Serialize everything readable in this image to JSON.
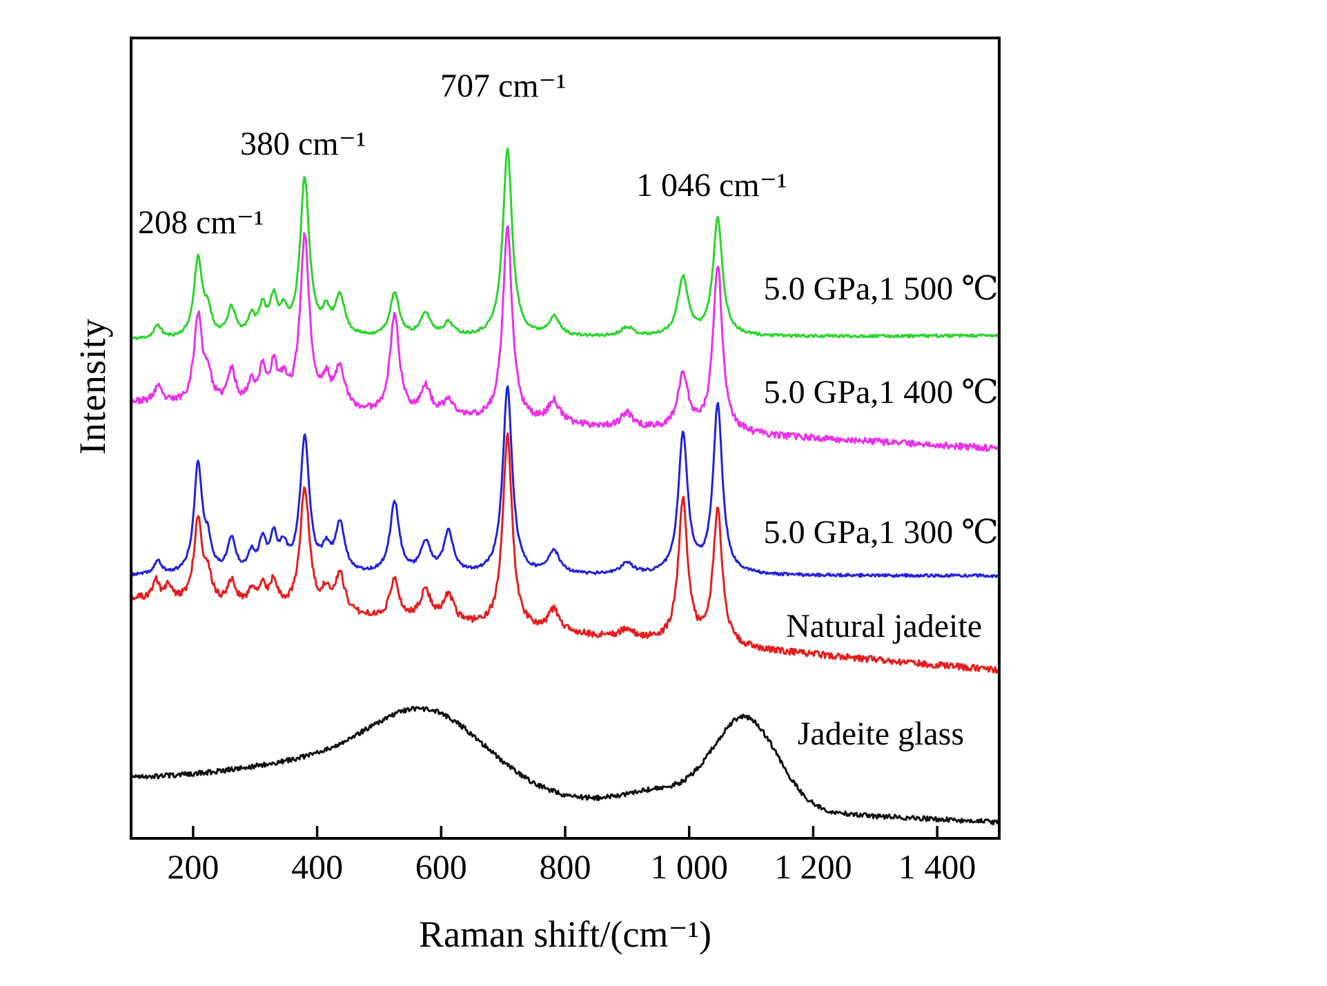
{
  "figure": {
    "background": "#ffffff"
  },
  "chart_data": {
    "type": "line",
    "title": "",
    "xlabel": "Raman shift/(cm⁻¹)",
    "ylabel": "Intensity",
    "xlim": [
      100,
      1500
    ],
    "grid": false,
    "frame": true,
    "legend_position": "right-of-each-curve",
    "xticks": [
      200,
      400,
      600,
      800,
      1000,
      1200,
      1400
    ],
    "xtick_labels": [
      "200",
      "400",
      "600",
      "800",
      "1 000",
      "1 200",
      "1 400"
    ],
    "peak_labels": [
      {
        "text": "208 cm⁻¹",
        "x": 208
      },
      {
        "text": "380 cm⁻¹",
        "x": 380
      },
      {
        "text": "707 cm⁻¹",
        "x": 707
      },
      {
        "text": "1 046 cm⁻¹",
        "x": 1046
      }
    ],
    "series": [
      {
        "name": "5.0 GPa,1 500 ℃",
        "color": "#2bd42b",
        "baseline": 0.623,
        "tilt": 0.005,
        "scale": 0.235,
        "noise": 0.0018,
        "seed": 11,
        "peaks": [
          [
            143,
            0.07,
            7
          ],
          [
            208,
            0.42,
            8
          ],
          [
            224,
            0.12,
            7
          ],
          [
            262,
            0.15,
            8
          ],
          [
            294,
            0.1,
            7
          ],
          [
            312,
            0.15,
            7
          ],
          [
            330,
            0.19,
            7
          ],
          [
            346,
            0.11,
            7
          ],
          [
            380,
            0.84,
            9
          ],
          [
            415,
            0.11,
            8
          ],
          [
            437,
            0.21,
            9
          ],
          [
            525,
            0.23,
            9
          ],
          [
            575,
            0.12,
            10
          ],
          [
            612,
            0.07,
            10
          ],
          [
            707,
            1.0,
            9
          ],
          [
            782,
            0.1,
            11
          ],
          [
            900,
            0.05,
            12
          ],
          [
            990,
            0.31,
            10
          ],
          [
            1046,
            0.63,
            9
          ]
        ],
        "humps": []
      },
      {
        "name": "5.0 GPa,1 400 ℃",
        "color": "#ea30ea",
        "baseline": 0.545,
        "tilt": -0.058,
        "scale": 0.25,
        "noise": 0.004,
        "seed": 23,
        "peaks": [
          [
            143,
            0.08,
            7
          ],
          [
            208,
            0.44,
            8
          ],
          [
            224,
            0.13,
            7
          ],
          [
            262,
            0.17,
            8
          ],
          [
            294,
            0.11,
            7
          ],
          [
            312,
            0.17,
            7
          ],
          [
            330,
            0.19,
            7
          ],
          [
            346,
            0.11,
            7
          ],
          [
            380,
            0.86,
            9
          ],
          [
            415,
            0.13,
            8
          ],
          [
            437,
            0.21,
            9
          ],
          [
            525,
            0.5,
            9
          ],
          [
            575,
            0.14,
            10
          ],
          [
            612,
            0.08,
            10
          ],
          [
            707,
            0.96,
            9
          ],
          [
            782,
            0.11,
            11
          ],
          [
            900,
            0.07,
            12
          ],
          [
            990,
            0.28,
            10
          ],
          [
            1046,
            0.84,
            9
          ]
        ],
        "humps": []
      },
      {
        "name": "5.0 GPa,1 300 ℃",
        "color": "#2222d8",
        "baseline": 0.328,
        "tilt": 0.0,
        "scale": 0.235,
        "noise": 0.0018,
        "seed": 37,
        "peaks": [
          [
            143,
            0.07,
            7
          ],
          [
            208,
            0.58,
            8
          ],
          [
            224,
            0.14,
            7
          ],
          [
            262,
            0.18,
            8
          ],
          [
            294,
            0.1,
            7
          ],
          [
            312,
            0.16,
            7
          ],
          [
            330,
            0.18,
            7
          ],
          [
            346,
            0.12,
            7
          ],
          [
            380,
            0.72,
            9
          ],
          [
            415,
            0.11,
            8
          ],
          [
            437,
            0.26,
            9
          ],
          [
            525,
            0.38,
            9
          ],
          [
            575,
            0.16,
            10
          ],
          [
            612,
            0.22,
            9
          ],
          [
            707,
            1.0,
            9
          ],
          [
            782,
            0.12,
            11
          ],
          [
            900,
            0.06,
            12
          ],
          [
            990,
            0.74,
            9
          ],
          [
            1046,
            0.9,
            9
          ]
        ],
        "humps": []
      },
      {
        "name": "Natural jadeite",
        "color": "#e51d1d",
        "baseline": 0.3,
        "tilt": -0.09,
        "scale": 0.24,
        "noise": 0.004,
        "seed": 51,
        "peaks": [
          [
            140,
            0.1,
            6
          ],
          [
            160,
            0.08,
            6
          ],
          [
            208,
            0.44,
            8
          ],
          [
            224,
            0.12,
            7
          ],
          [
            262,
            0.12,
            8
          ],
          [
            294,
            0.08,
            7
          ],
          [
            312,
            0.1,
            7
          ],
          [
            330,
            0.14,
            7
          ],
          [
            380,
            0.64,
            9
          ],
          [
            415,
            0.1,
            8
          ],
          [
            437,
            0.2,
            9
          ],
          [
            525,
            0.2,
            9
          ],
          [
            575,
            0.16,
            10
          ],
          [
            612,
            0.14,
            10
          ],
          [
            707,
            1.0,
            9
          ],
          [
            782,
            0.11,
            11
          ],
          [
            900,
            0.05,
            12
          ],
          [
            990,
            0.74,
            9
          ],
          [
            1046,
            0.7,
            9
          ]
        ],
        "humps": []
      },
      {
        "name": "Jadeite glass",
        "color": "#111111",
        "baseline": 0.075,
        "tilt": -0.055,
        "scale": 0.0,
        "noise": 0.003,
        "seed": 67,
        "peaks": [],
        "humps": [
          [
            390,
            0.028,
            130
          ],
          [
            580,
            0.095,
            95
          ],
          [
            950,
            0.018,
            55
          ],
          [
            1090,
            0.115,
            52
          ]
        ]
      }
    ]
  }
}
